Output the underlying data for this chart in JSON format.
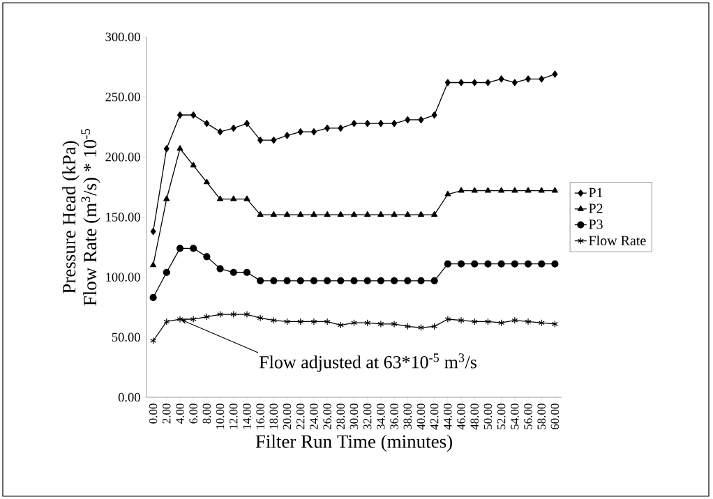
{
  "chart_data": {
    "type": "line",
    "xlabel": "Filter Run Time (minutes)",
    "ylabel": [
      "Pressure Head (kPa)",
      "Flow Rate (m$^{3}$/s) * 10$^{-5}$"
    ],
    "categories": [
      "0.00",
      "2.00",
      "4.00",
      "6.00",
      "8.00",
      "10.00",
      "12.00",
      "14.00",
      "16.00",
      "18.00",
      "20.00",
      "22.00",
      "24.00",
      "26.00",
      "28.00",
      "30.00",
      "32.00",
      "34.00",
      "36.00",
      "38.00",
      "40.00",
      "42.00",
      "44.00",
      "46.00",
      "48.00",
      "50.00",
      "52.00",
      "54.00",
      "56.00",
      "58.00",
      "60.00"
    ],
    "ylim": [
      0,
      300
    ],
    "yticks": [
      {
        "value": 0,
        "label": "0.00"
      },
      {
        "value": 50,
        "label": "50.00"
      },
      {
        "value": 100,
        "label": "100.00"
      },
      {
        "value": 150,
        "label": "150.00"
      },
      {
        "value": 200,
        "label": "200.00"
      },
      {
        "value": 250,
        "label": "250.00"
      },
      {
        "value": 300,
        "label": "300.00"
      }
    ],
    "series": [
      {
        "name": "P1",
        "color": "#000000",
        "marker": "diamond",
        "values": [
          138,
          207,
          235,
          235,
          228,
          221,
          224,
          228,
          214,
          214,
          218,
          221,
          221,
          224,
          224,
          228,
          228,
          228,
          228,
          231,
          231,
          235,
          262,
          262,
          262,
          262,
          265,
          262,
          265,
          265,
          269
        ]
      },
      {
        "name": "P2",
        "color": "#000000",
        "marker": "triangle",
        "values": [
          110,
          165,
          207,
          193,
          179,
          165,
          165,
          165,
          152,
          152,
          152,
          152,
          152,
          152,
          152,
          152,
          152,
          152,
          152,
          152,
          152,
          152,
          169,
          172,
          172,
          172,
          172,
          172,
          172,
          172,
          172
        ]
      },
      {
        "name": "P3",
        "color": "#000000",
        "marker": "circle",
        "values": [
          83,
          104,
          124,
          124,
          117,
          107,
          104,
          104,
          97,
          97,
          97,
          97,
          97,
          97,
          97,
          97,
          97,
          97,
          97,
          97,
          97,
          97,
          111,
          111,
          111,
          111,
          111,
          111,
          111,
          111,
          111
        ]
      },
      {
        "name": "Flow Rate",
        "color": "#000000",
        "marker": "cross",
        "values": [
          47,
          63,
          65,
          65,
          67,
          69,
          69,
          69,
          66,
          64,
          63,
          63,
          63,
          63,
          60,
          62,
          62,
          61,
          61,
          59,
          58,
          59,
          65,
          64,
          63,
          63,
          62,
          64,
          63,
          62,
          61
        ]
      }
    ],
    "annotations": [
      {
        "text": "Flow adjusted at 63*10$^{-5}$ m$^{3}$/s",
        "x": "4.00",
        "y": 65
      }
    ],
    "legend": "right",
    "grid": false,
    "line_style": "solid"
  }
}
